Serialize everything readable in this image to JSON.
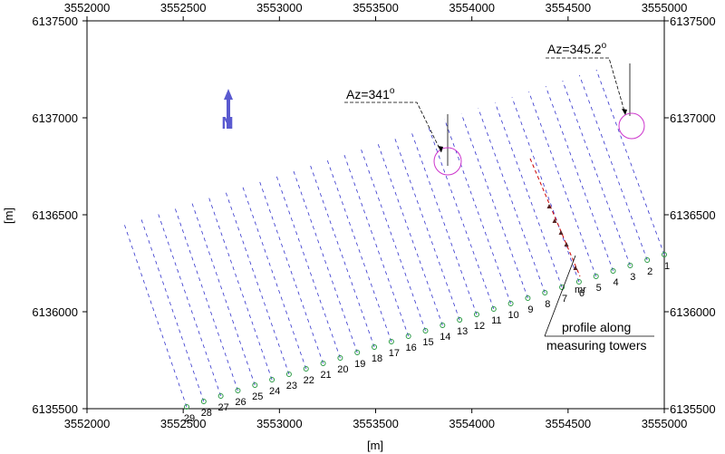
{
  "axes": {
    "x_label": "[m]",
    "y_label": "[m]",
    "x_ticks": [
      "3552000",
      "3552500",
      "3553000",
      "3553500",
      "3554000",
      "3554500",
      "3555000"
    ],
    "y_ticks": [
      "6135500",
      "6136000",
      "6136500",
      "6137000",
      "6137500"
    ],
    "xlim": [
      3552000,
      3555000
    ],
    "ylim": [
      6135500,
      6137500
    ]
  },
  "north": {
    "label": "N"
  },
  "turbines": {
    "labels": [
      "1",
      "2",
      "3",
      "4",
      "5",
      "6",
      "7",
      "8",
      "9",
      "10",
      "11",
      "12",
      "13",
      "14",
      "15",
      "16",
      "17",
      "18",
      "19",
      "20",
      "21",
      "22",
      "23",
      "24",
      "25",
      "26",
      "27",
      "28",
      "29"
    ]
  },
  "mast_label": "mr",
  "annotations": {
    "az1": {
      "text": "Az=341",
      "sup": "o"
    },
    "az2": {
      "text": "Az=345.2",
      "sup": "o"
    },
    "profile_line1": "profile along",
    "profile_line2": "measuring towers"
  },
  "colors": {
    "grid_lines": "#3333cc",
    "profile": "#cc0000",
    "turbine": "#2a9a44",
    "circle": "#cc33cc",
    "north": "#5a5ad0"
  }
}
